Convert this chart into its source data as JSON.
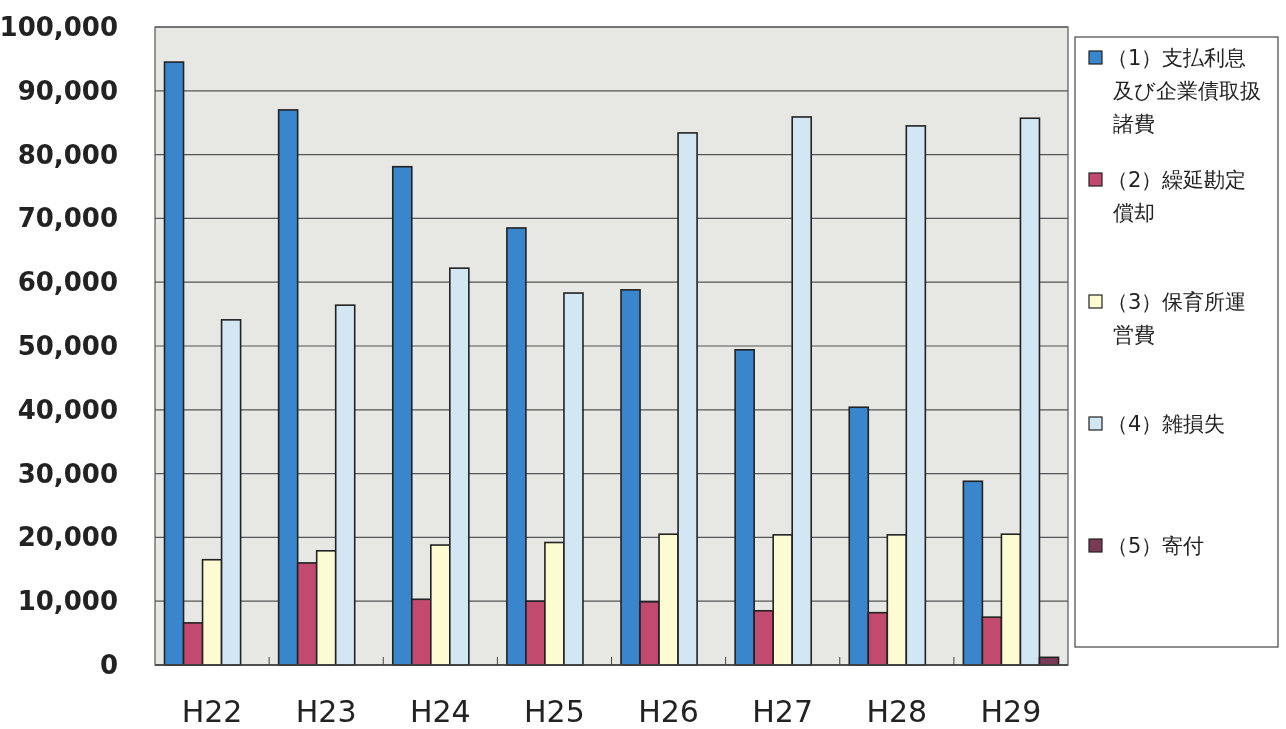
{
  "chart_data": {
    "type": "bar",
    "categories": [
      "H22",
      "H23",
      "H24",
      "H25",
      "H26",
      "H27",
      "H28",
      "H29"
    ],
    "series": [
      {
        "name": "（1）支払利息及び企業債取扱諸費",
        "color": "#3a86cc",
        "values": [
          94500,
          87000,
          78100,
          68500,
          58800,
          49400,
          40400,
          28800
        ]
      },
      {
        "name": "（2）繰延勘定償却",
        "color": "#c24a6e",
        "values": [
          6600,
          16000,
          10300,
          10000,
          9900,
          8500,
          8200,
          7500
        ]
      },
      {
        "name": "（3）保育所運営費",
        "color": "#fdfbd2",
        "values": [
          16500,
          17900,
          18800,
          19200,
          20500,
          20400,
          20400,
          20500
        ]
      },
      {
        "name": "（4）雑損失",
        "color": "#d3e6f4",
        "values": [
          54100,
          56400,
          62200,
          58300,
          83400,
          85900,
          84500,
          85700
        ]
      },
      {
        "name": "（5）寄付",
        "color": "#7a3a55",
        "values": [
          0,
          0,
          0,
          0,
          0,
          0,
          0,
          1200
        ]
      }
    ],
    "ylim": [
      0,
      100000
    ],
    "yticks": [
      {
        "value": 0,
        "label": "0"
      },
      {
        "value": 10000,
        "label": "10,000"
      },
      {
        "value": 20000,
        "label": "20,000"
      },
      {
        "value": 30000,
        "label": "30,000"
      },
      {
        "value": 40000,
        "label": "40,000"
      },
      {
        "value": 50000,
        "label": "50,000"
      },
      {
        "value": 60000,
        "label": "60,000"
      },
      {
        "value": 70000,
        "label": "70,000"
      },
      {
        "value": 80000,
        "label": "80,000"
      },
      {
        "value": 90000,
        "label": "90,000"
      },
      {
        "value": 100000,
        "label": "100,000"
      }
    ],
    "grid": "y",
    "legend": "right"
  }
}
